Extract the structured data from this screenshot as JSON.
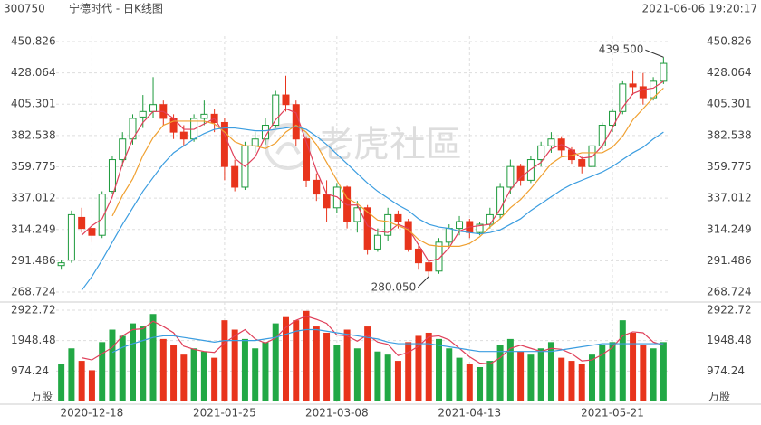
{
  "header": {
    "code": "300750",
    "title": "宁德时代 - 日K线图",
    "time": "2021-06-06 19:20:17"
  },
  "watermark": "老虎社區",
  "chart_data": {
    "type": "candlestick",
    "categories": [
      null,
      null,
      null,
      "2020-12-18",
      null,
      null,
      null,
      null,
      null,
      null,
      null,
      null,
      null,
      null,
      null,
      null,
      "2021-01-25",
      null,
      null,
      null,
      null,
      null,
      null,
      null,
      null,
      null,
      null,
      "2021-03-08",
      null,
      null,
      null,
      null,
      null,
      null,
      null,
      null,
      null,
      null,
      null,
      null,
      "2021-04-13",
      null,
      null,
      null,
      null,
      null,
      null,
      null,
      null,
      null,
      null,
      null,
      null,
      null,
      "2021-05-21",
      null,
      null,
      null,
      null,
      null
    ],
    "open": [
      288,
      292,
      323,
      315,
      310,
      342,
      365,
      380,
      396,
      400,
      405,
      395,
      385,
      380,
      395,
      398,
      392,
      360,
      345,
      375,
      380,
      390,
      412,
      405,
      380,
      350,
      340,
      330,
      345,
      320,
      330,
      300,
      310,
      325,
      320,
      300,
      290,
      284,
      305,
      315,
      320,
      312,
      318,
      325,
      345,
      360,
      350,
      365,
      375,
      380,
      372,
      365,
      360,
      375,
      390,
      400,
      420,
      418,
      410,
      422
    ],
    "high": [
      292,
      328,
      330,
      318,
      342,
      368,
      385,
      398,
      412,
      425,
      408,
      398,
      390,
      398,
      408,
      402,
      395,
      365,
      378,
      385,
      395,
      415,
      426,
      408,
      382,
      355,
      350,
      348,
      346,
      335,
      332,
      315,
      330,
      328,
      322,
      304,
      292,
      308,
      318,
      324,
      322,
      320,
      330,
      348,
      365,
      362,
      368,
      378,
      385,
      382,
      374,
      367,
      378,
      392,
      402,
      422,
      430,
      428,
      425,
      439.5
    ],
    "low": [
      285,
      290,
      312,
      305,
      308,
      340,
      360,
      376,
      388,
      395,
      390,
      380,
      375,
      378,
      390,
      385,
      350,
      342,
      343,
      370,
      376,
      388,
      400,
      375,
      345,
      335,
      320,
      326,
      315,
      312,
      296,
      298,
      306,
      315,
      298,
      285,
      280.05,
      282,
      302,
      310,
      308,
      310,
      315,
      322,
      340,
      346,
      348,
      360,
      370,
      368,
      362,
      355,
      358,
      372,
      385,
      398,
      412,
      405,
      408,
      420
    ],
    "close": [
      290,
      325,
      315,
      310,
      340,
      365,
      380,
      395,
      400,
      405,
      395,
      385,
      380,
      395,
      398,
      392,
      360,
      345,
      375,
      380,
      390,
      412,
      405,
      380,
      350,
      340,
      330,
      345,
      320,
      330,
      300,
      310,
      325,
      320,
      300,
      290,
      284,
      305,
      315,
      320,
      312,
      318,
      325,
      345,
      360,
      350,
      365,
      375,
      380,
      372,
      365,
      360,
      375,
      390,
      400,
      420,
      418,
      410,
      422,
      435
    ],
    "volume": [
      1200,
      1700,
      1300,
      1000,
      1900,
      2300,
      2100,
      2500,
      2400,
      2800,
      2000,
      1800,
      1500,
      1700,
      1600,
      1400,
      2600,
      2300,
      2000,
      1700,
      1900,
      2500,
      2700,
      2600,
      2900,
      2400,
      2200,
      1800,
      2300,
      1700,
      2400,
      1600,
      1500,
      1300,
      1900,
      2100,
      2200,
      2000,
      1700,
      1400,
      1200,
      1100,
      1300,
      1800,
      2000,
      1600,
      1500,
      1700,
      1900,
      1400,
      1300,
      1200,
      1500,
      1800,
      1900,
      2600,
      2200,
      1800,
      1700,
      1900
    ],
    "up_color": "#1d9a3c",
    "down_color": "#e8341c",
    "lines": [
      {
        "color": "#e0405a",
        "values": [
          null,
          null,
          310,
          317,
          322,
          338,
          362,
          380,
          392,
          400,
          400,
          395,
          387,
          387,
          391,
          395,
          383,
          366,
          360,
          367,
          382,
          394,
          402,
          399,
          378,
          357,
          340,
          338,
          332,
          332,
          317,
          313,
          312,
          318,
          315,
          303,
          291,
          293,
          301,
          313,
          316,
          317,
          318,
          329,
          343,
          352,
          358,
          363,
          373,
          376,
          372,
          366,
          367,
          375,
          388,
          403,
          413,
          416,
          417,
          422
        ]
      },
      {
        "color": "#f0a030",
        "values": [
          null,
          null,
          null,
          null,
          null,
          324,
          339,
          351,
          368,
          381,
          390,
          393,
          393,
          393,
          393,
          391,
          385,
          378,
          375,
          375,
          373,
          377,
          385,
          390,
          385,
          376,
          363,
          350,
          337,
          333,
          327,
          321,
          320,
          317,
          314,
          307,
          303,
          302,
          302,
          302,
          304,
          309,
          316,
          322,
          330,
          336,
          344,
          353,
          362,
          367,
          368,
          370,
          370,
          370,
          374,
          382,
          394,
          402,
          410,
          417
        ]
      },
      {
        "color": "#3b9de0",
        "values": [
          null,
          null,
          270,
          280,
          292,
          305,
          318,
          330,
          342,
          352,
          362,
          370,
          375,
          380,
          384,
          387,
          388,
          388,
          387,
          386,
          386,
          387,
          388,
          389,
          387,
          382,
          376,
          369,
          362,
          355,
          348,
          342,
          337,
          332,
          328,
          322,
          318,
          316,
          315,
          313,
          312,
          311,
          312,
          314,
          318,
          322,
          328,
          333,
          338,
          343,
          347,
          350,
          353,
          356,
          360,
          365,
          370,
          374,
          380,
          385
        ]
      }
    ],
    "volume_lines": [
      {
        "color": "#e0405a",
        "values": [
          null,
          null,
          1400,
          1330,
          1530,
          1730,
          2100,
          2300,
          2330,
          2570,
          2400,
          2200,
          1770,
          1670,
          1600,
          1570,
          1870,
          2100,
          2300,
          2000,
          1870,
          2030,
          2370,
          2600,
          2730,
          2630,
          2500,
          2130,
          2100,
          1930,
          2130,
          1900,
          1830,
          1470,
          1570,
          1770,
          2070,
          2100,
          1970,
          1700,
          1430,
          1230,
          1200,
          1400,
          1700,
          1800,
          1700,
          1600,
          1700,
          1670,
          1530,
          1300,
          1330,
          1500,
          1730,
          2100,
          2230,
          2200,
          1900,
          1800
        ]
      },
      {
        "color": "#3b9de0",
        "values": [
          null,
          null,
          null,
          null,
          null,
          1570,
          1730,
          1850,
          1950,
          2050,
          2100,
          2100,
          2050,
          2000,
          1950,
          1900,
          1950,
          1950,
          1950,
          1950,
          2000,
          2050,
          2150,
          2250,
          2300,
          2300,
          2250,
          2200,
          2150,
          2100,
          2050,
          2000,
          1900,
          1850,
          1850,
          1850,
          1850,
          1800,
          1750,
          1700,
          1650,
          1600,
          1600,
          1600,
          1600,
          1600,
          1600,
          1600,
          1600,
          1650,
          1700,
          1750,
          1800,
          1850,
          1850,
          1850,
          1850,
          1850,
          1850,
          1850
        ]
      }
    ],
    "ylim": [
      268.724,
      450.826
    ],
    "yticks": [
      268.724,
      291.486,
      314.249,
      337.012,
      359.775,
      382.538,
      405.301,
      428.064,
      450.826
    ],
    "volume_ylim": [
      0,
      2922.72
    ],
    "volume_yticks": [
      974.24,
      1948.48,
      2922.72
    ],
    "volume_unit": "万股",
    "annotations": [
      {
        "value": 439.5,
        "label": "439.500"
      },
      {
        "value": 280.05,
        "label": "280.050"
      }
    ],
    "grid": true
  }
}
